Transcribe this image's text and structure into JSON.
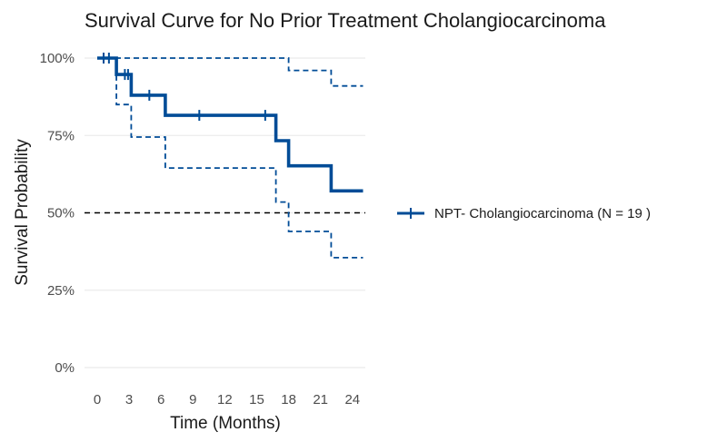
{
  "chart_data": {
    "type": "line",
    "title": "Survival Curve for No Prior Treatment Cholangiocarcinoma",
    "xlabel": "Time (Months)",
    "ylabel": "Survival Probability",
    "xlim": [
      0,
      25
    ],
    "ylim": [
      0,
      1
    ],
    "x_ticks": [
      0,
      3,
      6,
      9,
      12,
      15,
      18,
      21,
      24
    ],
    "y_ticks": [
      0,
      0.25,
      0.5,
      0.75,
      1.0
    ],
    "y_tick_labels": [
      "0%",
      "25%",
      "50%",
      "75%",
      "100%"
    ],
    "grid": true,
    "legend_position": "right",
    "color": "#004c97",
    "median_line": 0.5,
    "series": [
      {
        "name": "NPT- Cholangiocarcinoma (N = 19 )",
        "style": "step",
        "points": [
          [
            0,
            1.0
          ],
          [
            1.8,
            1.0
          ],
          [
            1.8,
            0.947
          ],
          [
            3.2,
            0.947
          ],
          [
            3.2,
            0.88
          ],
          [
            6.4,
            0.88
          ],
          [
            6.4,
            0.815
          ],
          [
            16.8,
            0.815
          ],
          [
            16.8,
            0.733
          ],
          [
            18.0,
            0.733
          ],
          [
            18.0,
            0.652
          ],
          [
            22.0,
            0.652
          ],
          [
            22.0,
            0.571
          ],
          [
            25,
            0.571
          ]
        ],
        "censor_times": [
          0.6,
          1.1,
          2.6,
          2.9,
          4.9,
          9.6,
          15.8
        ]
      },
      {
        "name": "upper confidence bound",
        "style": "step-dashed",
        "points": [
          [
            0,
            1.0
          ],
          [
            18.0,
            1.0
          ],
          [
            18.0,
            0.96
          ],
          [
            22.0,
            0.96
          ],
          [
            22.0,
            0.91
          ],
          [
            25,
            0.91
          ]
        ]
      },
      {
        "name": "lower confidence bound",
        "style": "step-dashed",
        "points": [
          [
            0,
            1.0
          ],
          [
            1.8,
            1.0
          ],
          [
            1.8,
            0.85
          ],
          [
            3.2,
            0.85
          ],
          [
            3.2,
            0.745
          ],
          [
            6.4,
            0.745
          ],
          [
            6.4,
            0.645
          ],
          [
            16.8,
            0.645
          ],
          [
            16.8,
            0.535
          ],
          [
            18.0,
            0.535
          ],
          [
            18.0,
            0.44
          ],
          [
            22.0,
            0.44
          ],
          [
            22.0,
            0.355
          ],
          [
            25,
            0.355
          ]
        ]
      }
    ]
  }
}
